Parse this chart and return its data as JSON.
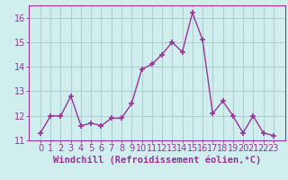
{
  "x": [
    0,
    1,
    2,
    3,
    4,
    5,
    6,
    7,
    8,
    9,
    10,
    11,
    12,
    13,
    14,
    15,
    16,
    17,
    18,
    19,
    20,
    21,
    22,
    23
  ],
  "y": [
    11.3,
    12.0,
    12.0,
    12.8,
    11.6,
    11.7,
    11.6,
    11.9,
    11.9,
    12.5,
    13.9,
    14.1,
    14.5,
    15.0,
    14.6,
    16.2,
    15.1,
    12.1,
    12.6,
    12.0,
    11.3,
    12.0,
    11.3,
    11.2
  ],
  "line_color": "#993399",
  "marker": "+",
  "marker_size": 5,
  "background_color": "#d0eeee",
  "grid_color": "#b0d0d0",
  "xlabel": "Windchill (Refroidissement éolien,°C)",
  "xlabel_fontsize": 7.5,
  "tick_fontsize": 7,
  "ylim": [
    11.0,
    16.5
  ],
  "yticks": [
    11,
    12,
    13,
    14,
    15,
    16
  ],
  "xticks": [
    0,
    1,
    2,
    3,
    4,
    5,
    6,
    7,
    8,
    9,
    10,
    11,
    12,
    13,
    14,
    15,
    16,
    17,
    18,
    19,
    20,
    21,
    22,
    23
  ],
  "line_width": 1.0
}
